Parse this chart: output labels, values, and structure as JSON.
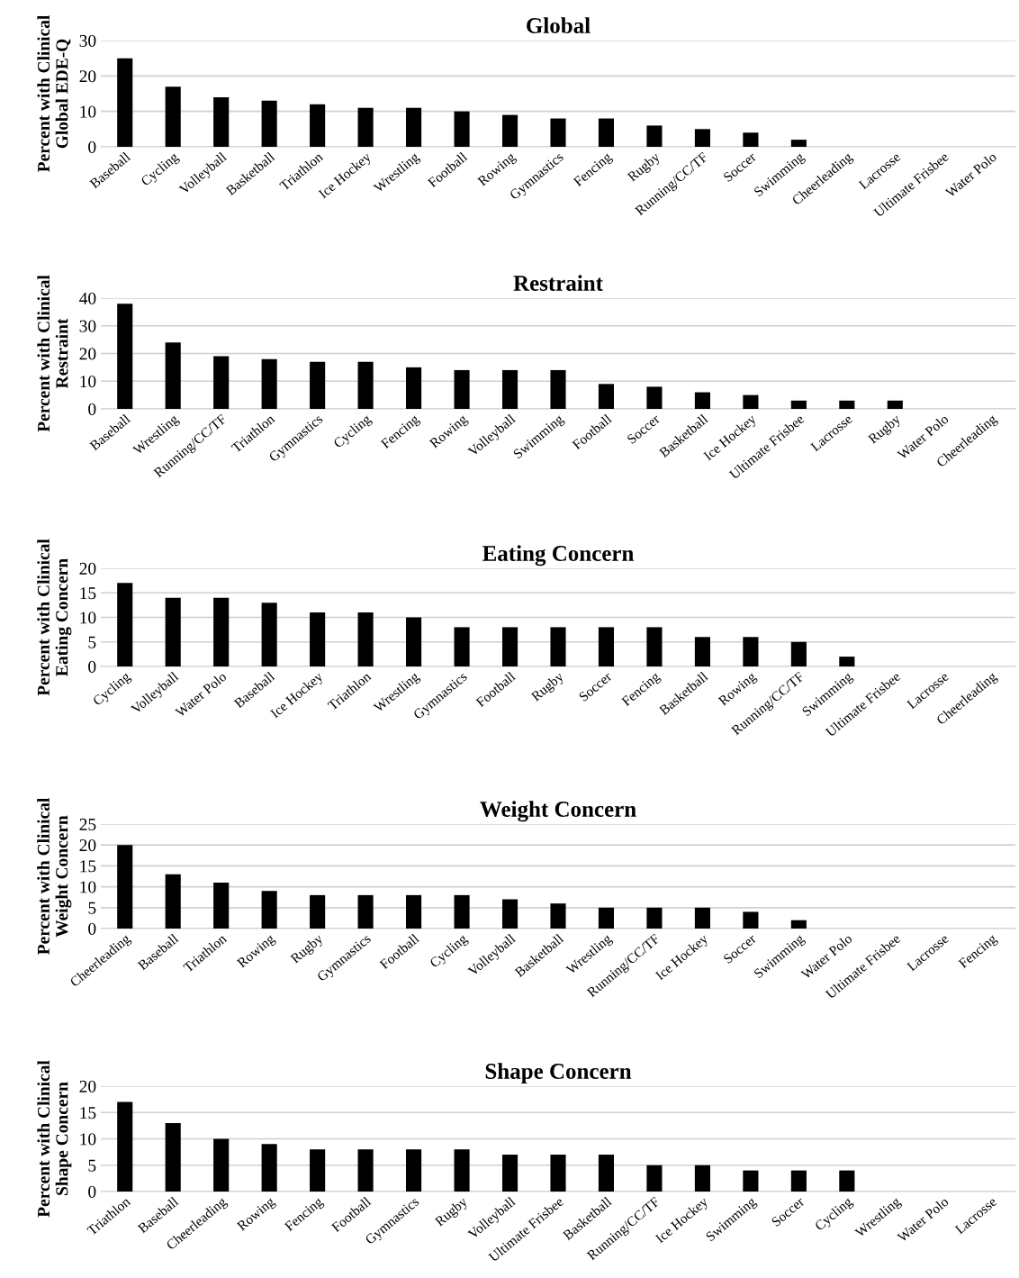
{
  "chart_data": [
    {
      "type": "bar",
      "title": "Global",
      "ylabel": "Percent with Clinical\nGlobal EDE-Q",
      "categories": [
        "Baseball",
        "Cycling",
        "Volleyball",
        "Basketball",
        "Triathlon",
        "Ice Hockey",
        "Wrestling",
        "Football",
        "Rowing",
        "Gymnastics",
        "Fencing",
        "Rugby",
        "Running/CC/TF",
        "Soccer",
        "Swimming",
        "Cheerleading",
        "Lacrosse",
        "Ultimate Frisbee",
        "Water Polo"
      ],
      "values": [
        25,
        17,
        14,
        13,
        12,
        11,
        11,
        10,
        9,
        8,
        8,
        6,
        5,
        4,
        2,
        0,
        0,
        0,
        0
      ],
      "color": "#000000",
      "ylim": [
        0,
        30
      ],
      "yticks": [
        0,
        10,
        20,
        30
      ],
      "grid": "y"
    },
    {
      "type": "bar",
      "title": "Restraint",
      "ylabel": "Percent with Clinical\nRestraint",
      "categories": [
        "Baseball",
        "Wrestling",
        "Running/CC/TF",
        "Triathlon",
        "Gymnastics",
        "Cycling",
        "Fencing",
        "Rowing",
        "Volleyball",
        "Swimming",
        "Football",
        "Soccer",
        "Basketball",
        "Ice Hockey",
        "Ultimate Frisbee",
        "Lacrosse",
        "Rugby",
        "Water Polo",
        "Cheerleading"
      ],
      "values": [
        38,
        24,
        19,
        18,
        17,
        17,
        15,
        14,
        14,
        14,
        9,
        8,
        6,
        5,
        3,
        3,
        3,
        0,
        0
      ],
      "color": "#000000",
      "ylim": [
        0,
        40
      ],
      "yticks": [
        0,
        10,
        20,
        30,
        40
      ],
      "grid": "y"
    },
    {
      "type": "bar",
      "title": "Eating Concern",
      "ylabel": "Percent with Clinical\nEating Concern",
      "categories": [
        "Cycling",
        "Volleyball",
        "Water Polo",
        "Baseball",
        "Ice Hockey",
        "Triathlon",
        "Wrestling",
        "Gymnastics",
        "Football",
        "Rugby",
        "Soccer",
        "Fencing",
        "Basketball",
        "Rowing",
        "Running/CC/TF",
        "Swimming",
        "Ultimate Frisbee",
        "Lacrosse",
        "Cheerleading"
      ],
      "values": [
        17,
        14,
        14,
        13,
        11,
        11,
        10,
        8,
        8,
        8,
        8,
        8,
        6,
        6,
        5,
        2,
        0,
        0,
        0
      ],
      "color": "#000000",
      "ylim": [
        0,
        20
      ],
      "yticks": [
        0,
        5,
        10,
        15,
        20
      ],
      "grid": "y"
    },
    {
      "type": "bar",
      "title": "Weight Concern",
      "ylabel": "Percent with Clinical\nWeight Concern",
      "categories": [
        "Cheerleading",
        "Baseball",
        "Triathlon",
        "Rowing",
        "Rugby",
        "Gymnastics",
        "Football",
        "Cycling",
        "Volleyball",
        "Basketball",
        "Wrestling",
        "Running/CC/TF",
        "Ice Hockey",
        "Soccer",
        "Swimming",
        "Water Polo",
        "Ultimate Frisbee",
        "Lacrosse",
        "Fencing"
      ],
      "values": [
        20,
        13,
        11,
        9,
        8,
        8,
        8,
        8,
        7,
        6,
        5,
        5,
        5,
        4,
        2,
        0,
        0,
        0,
        0
      ],
      "color": "#000000",
      "ylim": [
        0,
        25
      ],
      "yticks": [
        0,
        5,
        10,
        15,
        20,
        25
      ],
      "grid": "y"
    },
    {
      "type": "bar",
      "title": "Shape Concern",
      "ylabel": "Percent with Clinical\nShape Concern",
      "categories": [
        "Triathlon",
        "Baseball",
        "Cheerleading",
        "Rowing",
        "Fencing",
        "Football",
        "Gymnastics",
        "Rugby",
        "Volleyball",
        "Ultimate Frisbee",
        "Basketball",
        "Running/CC/TF",
        "Ice Hockey",
        "Swimming",
        "Soccer",
        "Cycling",
        "Wrestling",
        "Water Polo",
        "Lacrosse"
      ],
      "values": [
        17,
        13,
        10,
        9,
        8,
        8,
        8,
        8,
        7,
        7,
        7,
        5,
        5,
        4,
        4,
        4,
        0,
        0,
        0
      ],
      "color": "#000000",
      "ylim": [
        0,
        20
      ],
      "yticks": [
        0,
        5,
        10,
        15,
        20
      ],
      "grid": "y"
    }
  ]
}
